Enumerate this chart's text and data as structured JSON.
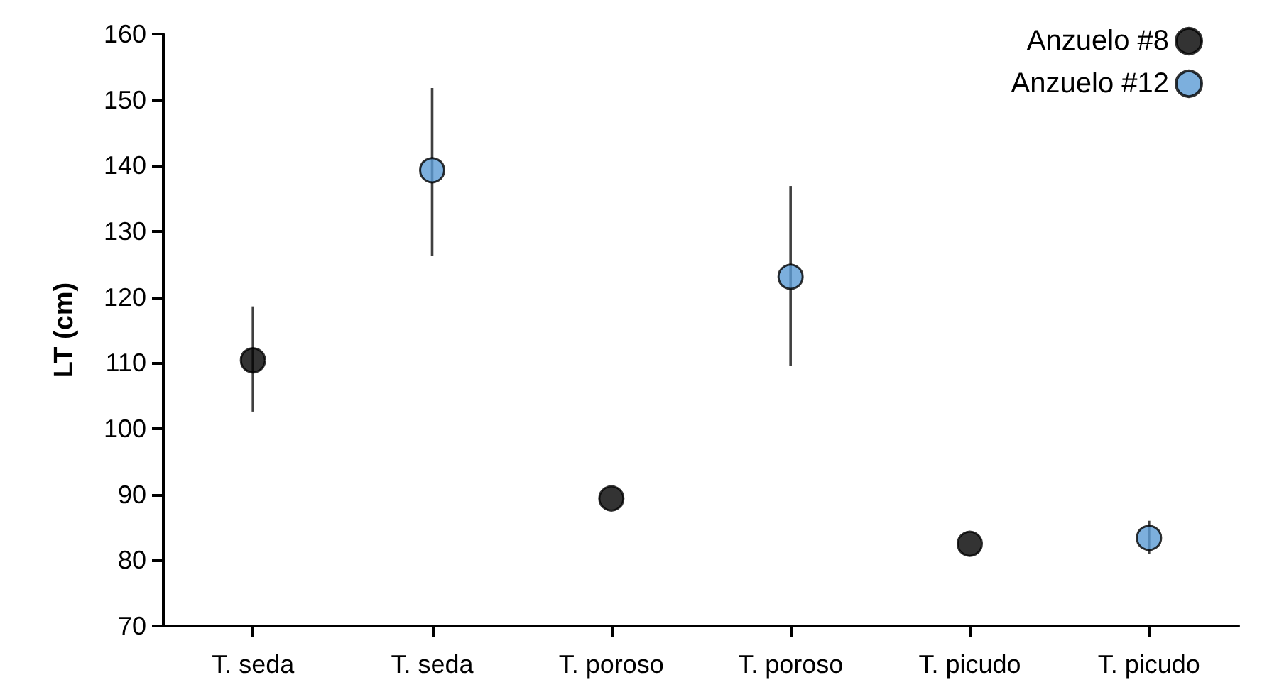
{
  "chart_data": {
    "type": "scatter",
    "ylabel": "LT (cm)",
    "categories": [
      "T. seda",
      "T. seda",
      "T. poroso",
      "T. poroso",
      "T. picudo",
      "T. picudo"
    ],
    "series": [
      {
        "name": "Anzuelo #8",
        "color": "#000000",
        "values": [
          110.4,
          null,
          89.4,
          null,
          82.5,
          null
        ],
        "errors": [
          [
            102.6,
            118.6
          ],
          null,
          null,
          null,
          null,
          null
        ]
      },
      {
        "name": "Anzuelo #12",
        "color": "#5b9bd5",
        "values": [
          null,
          139.3,
          null,
          123.1,
          null,
          83.4
        ],
        "errors": [
          null,
          [
            126.3,
            151.8
          ],
          null,
          [
            109.5,
            136.9
          ],
          null,
          [
            81,
            86
          ]
        ]
      }
    ],
    "ylim": [
      70,
      160
    ],
    "yticks": [
      70,
      80,
      90,
      100,
      110,
      120,
      130,
      140,
      150,
      160
    ],
    "legend": "top right",
    "marker": "circle",
    "grid": false
  }
}
